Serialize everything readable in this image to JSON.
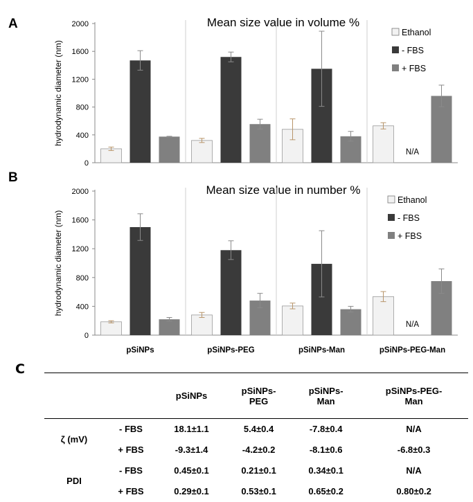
{
  "chart_data": [
    {
      "panel": "A",
      "type": "bar",
      "title": "Mean size value in volume %",
      "ylabel": "hydrodynamic diameter (nm)",
      "xlabel": "",
      "ylim": [
        0,
        2000
      ],
      "yticks": [
        "0",
        "400",
        "800",
        "1200",
        "1600",
        "2000"
      ],
      "categories": [
        "pSiNPs",
        "pSiNPs-PEG",
        "pSiNPs-Man",
        "pSiNPs-PEG-Man"
      ],
      "show_category_labels": false,
      "legend": {
        "position": "top-right",
        "entries": [
          "Ethanol",
          "- FBS",
          "+ FBS"
        ]
      },
      "na_label": "N/A",
      "series": [
        {
          "name": "Ethanol",
          "color": "#f2f2f2",
          "values": [
            200,
            320,
            480,
            530
          ],
          "errors": [
            25,
            30,
            150,
            45
          ]
        },
        {
          "name": "- FBS",
          "color": "#3a3a3a",
          "values": [
            1470,
            1520,
            1350,
            null
          ],
          "errors": [
            140,
            70,
            540,
            null
          ]
        },
        {
          "name": "+ FBS",
          "color": "#808080",
          "values": [
            375,
            555,
            380,
            960
          ],
          "errors": [
            5,
            70,
            70,
            155
          ]
        }
      ]
    },
    {
      "panel": "B",
      "type": "bar",
      "title": "Mean size value in number %",
      "ylabel": "hydrodynamic diameter (nm)",
      "xlabel": "",
      "ylim": [
        0,
        2000
      ],
      "yticks": [
        "0",
        "400",
        "800",
        "1200",
        "1600",
        "2000"
      ],
      "categories": [
        "pSiNPs",
        "pSiNPs-PEG",
        "pSiNPs-Man",
        "pSiNPs-PEG-Man"
      ],
      "show_category_labels": true,
      "legend": {
        "position": "top-right",
        "entries": [
          "Ethanol",
          "- FBS",
          "+ FBS"
        ]
      },
      "na_label": "N/A",
      "series": [
        {
          "name": "Ethanol",
          "color": "#f2f2f2",
          "values": [
            185,
            280,
            405,
            535
          ],
          "errors": [
            15,
            35,
            40,
            70
          ]
        },
        {
          "name": "- FBS",
          "color": "#3a3a3a",
          "values": [
            1500,
            1180,
            990,
            null
          ],
          "errors": [
            185,
            130,
            460,
            null
          ]
        },
        {
          "name": "+ FBS",
          "color": "#808080",
          "values": [
            220,
            480,
            360,
            750
          ],
          "errors": [
            25,
            100,
            40,
            170
          ]
        }
      ]
    }
  ],
  "panel_c": {
    "letter": "C",
    "headers": [
      "",
      "",
      "pSiNPs",
      "pSiNPs-\nPEG",
      "pSiNPs-\nMan",
      "pSiNPs-PEG-\nMan"
    ],
    "groups": [
      {
        "label": "ζ (mV)",
        "rows": [
          {
            "cond": "- FBS",
            "values": [
              "18.1±1.1",
              "5.4±0.4",
              "-7.8±0.4",
              "N/A"
            ]
          },
          {
            "cond": "+ FBS",
            "values": [
              "-9.3±1.4",
              "-4.2±0.2",
              "-8.1±0.6",
              "-6.8±0.3"
            ]
          }
        ]
      },
      {
        "label": "PDI",
        "rows": [
          {
            "cond": "- FBS",
            "values": [
              "0.45±0.1",
              "0.21±0.1",
              "0.34±0.1",
              "N/A"
            ]
          },
          {
            "cond": "+ FBS",
            "values": [
              "0.29±0.1",
              "0.53±0.1",
              "0.65±0.2",
              "0.80±0.2"
            ]
          }
        ]
      }
    ]
  }
}
